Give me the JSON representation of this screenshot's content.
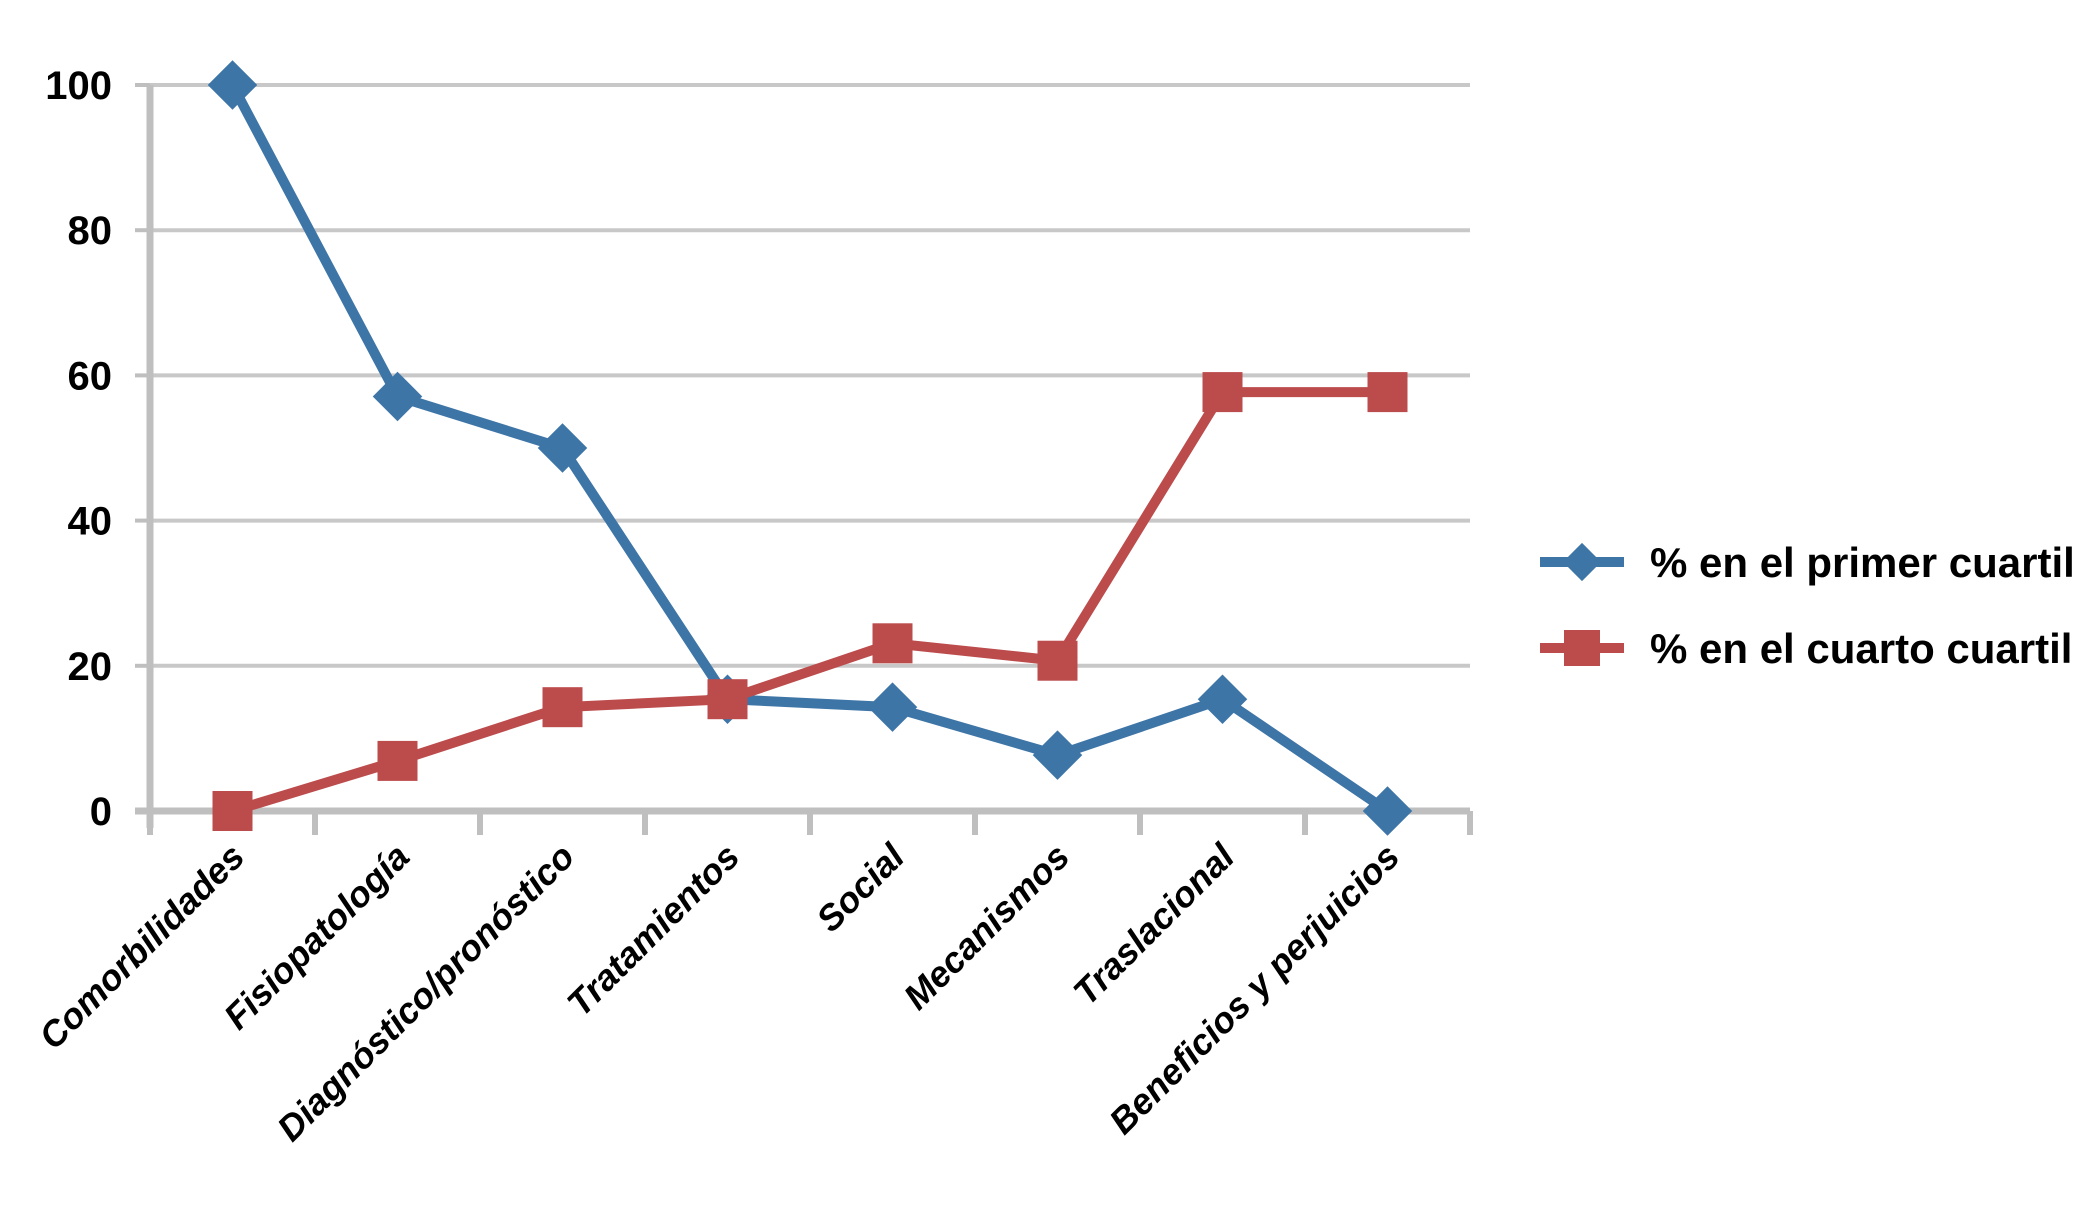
{
  "chart_data": {
    "type": "line",
    "title": "",
    "xlabel": "",
    "ylabel": "",
    "categories": [
      "Comorbilidades",
      "Fisiopatología",
      "Diagnóstico/pronóstico",
      "Tratamientos",
      "Social",
      "Mecanismos",
      "Traslacional",
      "Beneficios y perjuicios"
    ],
    "series": [
      {
        "id": "primer-cuartil",
        "name": "% en el primer cuartil",
        "marker": "diamond",
        "color": "#3E75A7",
        "values": [
          100,
          57.1,
          50,
          15.4,
          14.3,
          7.7,
          15.4,
          0
        ]
      },
      {
        "id": "cuarto-cuartil",
        "name": "% en el cuarto cuartil",
        "marker": "square",
        "color": "#BC4B4C",
        "values": [
          0,
          6.9,
          14.3,
          15.4,
          23.1,
          20.7,
          57.7,
          57.7
        ]
      }
    ],
    "ylim": [
      0,
      100
    ],
    "ytick_step": 20,
    "y_tick_labels": [
      "0",
      "20",
      "40",
      "60",
      "80",
      "100"
    ],
    "grid": true,
    "grid_color": "#C8C8C8",
    "axis_color": "#BFBFBF",
    "text_color": "#000000",
    "legend_position": "right"
  }
}
